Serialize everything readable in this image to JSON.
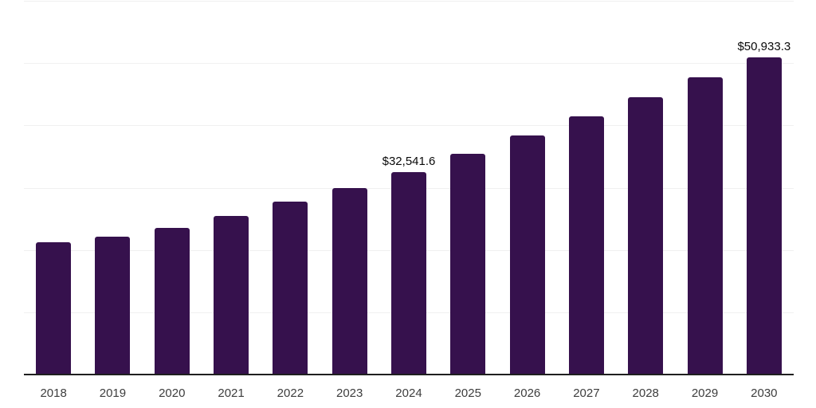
{
  "chart_data": {
    "type": "bar",
    "title": "",
    "xlabel": "",
    "ylabel": "",
    "categories": [
      "2018",
      "2019",
      "2020",
      "2021",
      "2022",
      "2023",
      "2024",
      "2025",
      "2026",
      "2027",
      "2028",
      "2029",
      "2030"
    ],
    "values": [
      21200,
      22100,
      23500,
      25400,
      27700,
      30000,
      32541.6,
      35500,
      38400,
      41400,
      44500,
      47700,
      50933.3
    ],
    "data_labels": [
      null,
      null,
      null,
      null,
      null,
      null,
      "$32,541.6",
      null,
      null,
      null,
      null,
      null,
      "$50,933.3"
    ],
    "ylim": [
      0,
      60000
    ],
    "gridline_step": 10000,
    "grid": true,
    "legend": "none",
    "colors": {
      "bar": "#36114d",
      "gridline": "#f0f0f0",
      "axis_line": "#1f1f1f",
      "tick_label": "#3d3d3d",
      "data_label": "#0a0a0a",
      "background": "#ffffff"
    }
  }
}
